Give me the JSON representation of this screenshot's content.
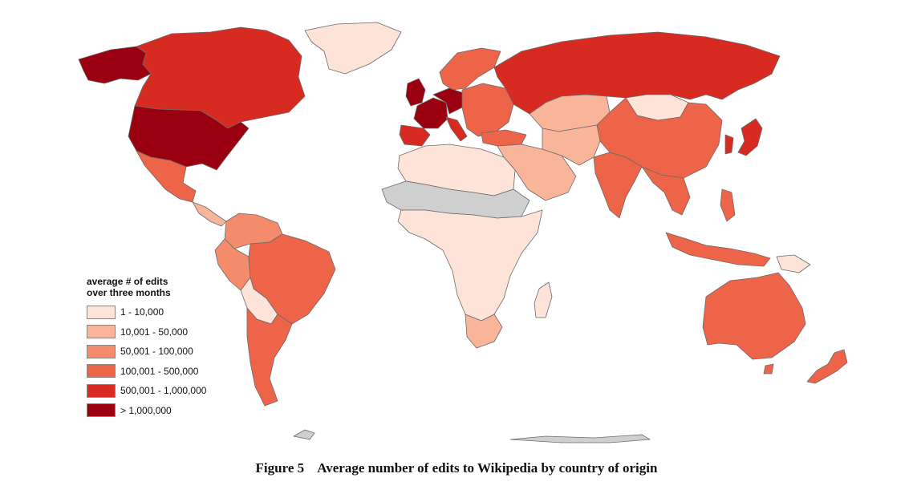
{
  "legend": {
    "title": "average # of edits\nover three months",
    "items": [
      {
        "label": "1 - 10,000",
        "color": "#fde3d8"
      },
      {
        "label": "10,001 - 50,000",
        "color": "#f9b59a"
      },
      {
        "label": "50,001 - 100,000",
        "color": "#f48b6b"
      },
      {
        "label": "100,001 - 500,000",
        "color": "#ee6448"
      },
      {
        "label": "500,001 - 1,000,000",
        "color": "#d72b22"
      },
      {
        "label": "> 1,000,000",
        "color": "#9b0010"
      }
    ],
    "no_data_color": "#cfcfcf"
  },
  "caption": {
    "number": "Figure 5",
    "text": "Average number of edits to Wikipedia by country of origin"
  },
  "map": {
    "countries": [
      {
        "name": "Canada",
        "class": 4
      },
      {
        "name": "Alaska (United States)",
        "class": 5
      },
      {
        "name": "Greenland",
        "class": 0
      },
      {
        "name": "United States",
        "class": 5
      },
      {
        "name": "Mexico",
        "class": 3
      },
      {
        "name": "Central America",
        "class": 1
      },
      {
        "name": "Colombia/Venezuela",
        "class": 2
      },
      {
        "name": "Brazil",
        "class": 3
      },
      {
        "name": "Peru",
        "class": 2
      },
      {
        "name": "Bolivia",
        "class": 0
      },
      {
        "name": "Argentina/Chile",
        "class": 3
      },
      {
        "name": "United Kingdom",
        "class": 5
      },
      {
        "name": "France",
        "class": 5
      },
      {
        "name": "Germany",
        "class": 5
      },
      {
        "name": "Spain",
        "class": 4
      },
      {
        "name": "Italy",
        "class": 4
      },
      {
        "name": "Scandinavia",
        "class": 3
      },
      {
        "name": "Eastern Europe",
        "class": 3
      },
      {
        "name": "Russia",
        "class": 4
      },
      {
        "name": "Kazakhstan",
        "class": 1
      },
      {
        "name": "Mongolia",
        "class": 0
      },
      {
        "name": "China",
        "class": 3
      },
      {
        "name": "India",
        "class": 3
      },
      {
        "name": "Middle East",
        "class": 1
      },
      {
        "name": "North Africa",
        "class": 0
      },
      {
        "name": "Sahel (no data)",
        "class": -1
      },
      {
        "name": "Central Africa",
        "class": 0
      },
      {
        "name": "South Africa",
        "class": 1
      },
      {
        "name": "Madagascar",
        "class": 0
      },
      {
        "name": "Southeast Asia",
        "class": 3
      },
      {
        "name": "Indonesia",
        "class": 3
      },
      {
        "name": "Japan",
        "class": 4
      },
      {
        "name": "Australia",
        "class": 3
      },
      {
        "name": "New Zealand",
        "class": 3
      },
      {
        "name": "Antarctica (no data)",
        "class": -1
      }
    ]
  }
}
